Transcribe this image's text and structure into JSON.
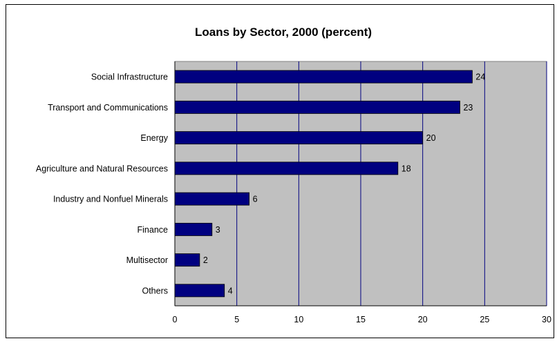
{
  "chart_data": {
    "type": "bar",
    "orientation": "horizontal",
    "title": "Loans by Sector, 2000 (percent)",
    "xlabel": "",
    "ylabel": "",
    "categories": [
      "Social Infrastructure",
      "Transport and Communications",
      "Energy",
      "Agriculture and Natural Resources",
      "Industry and Nonfuel Minerals",
      "Finance",
      "Multisector",
      "Others"
    ],
    "values": [
      24,
      23,
      20,
      18,
      6,
      3,
      2,
      4
    ],
    "data_labels": [
      "24",
      "23",
      "20",
      "18",
      "6",
      "3",
      "2",
      "4"
    ],
    "xlim": [
      0,
      30
    ],
    "x_ticks": [
      0,
      5,
      10,
      15,
      20,
      25,
      30
    ],
    "x_tick_labels": [
      "0",
      "5",
      "10",
      "15",
      "20",
      "25",
      "30"
    ],
    "grid": "vertical",
    "legend": "none",
    "colors": {
      "bar": "#000080",
      "plot_background": "#c0c0c0",
      "gridline": "#000080"
    }
  }
}
